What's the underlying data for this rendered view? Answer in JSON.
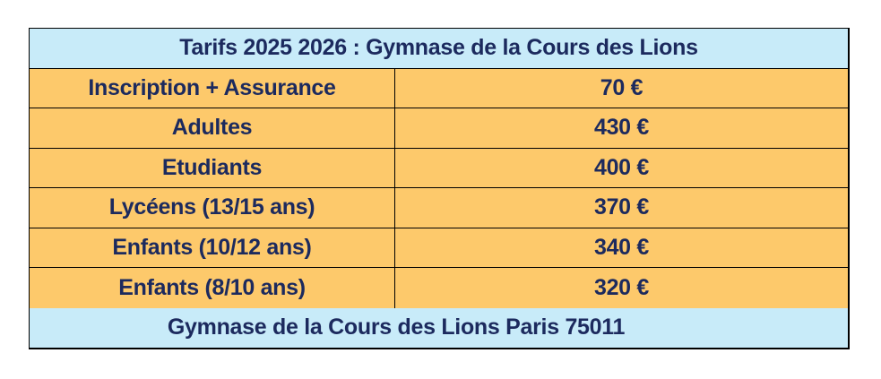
{
  "header": {
    "title": "Tarifs 2025 2026 : Gymnase de la Cours des Lions"
  },
  "table": {
    "rows": [
      [
        "Inscription + Assurance",
        "70 €"
      ],
      [
        "Adultes",
        "430 €"
      ],
      [
        "Etudiants",
        "400 €"
      ],
      [
        "Lycéens (13/15 ans)",
        "370 €"
      ],
      [
        "Enfants (10/12 ans)",
        "340 €"
      ],
      [
        "Enfants (8/10 ans)",
        "320 €"
      ]
    ]
  },
  "footer": {
    "text": "Gymnase de la Cours des Lions Paris 75011"
  }
}
